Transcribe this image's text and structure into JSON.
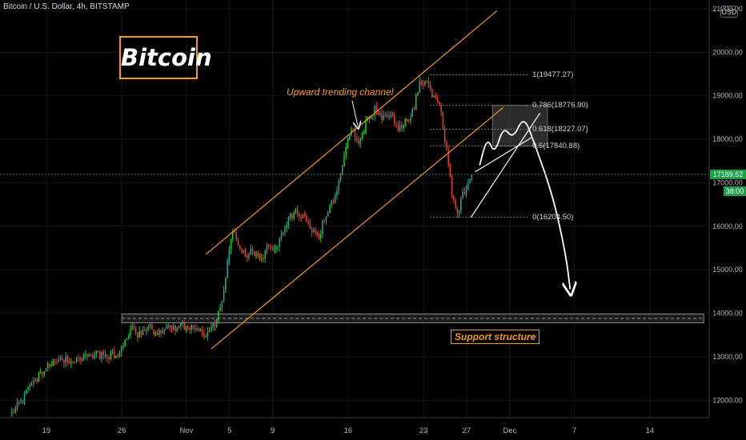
{
  "header": {
    "title": "Bitcoin / U.S. Dollar, 4h, BITSTAMP",
    "currency": "USD"
  },
  "overlay": {
    "badge": "Bitcoin",
    "channel_label": "Upward trending channel",
    "support_label": "Support structure"
  },
  "price_tags": {
    "last_price": "17189.52",
    "countdown": "38:00",
    "hidden_tick": "17"
  },
  "colors": {
    "up": "#26a69a",
    "up_bright": "#22d11e",
    "down": "#ef3a3a",
    "accent": "#f39a16",
    "last_price_line": "#1f9e49"
  },
  "chart_data": {
    "type": "candlestick",
    "title": "Bitcoin / U.S. Dollar, 4h, BITSTAMP",
    "y_ticks": [
      12000,
      13000,
      14000,
      15000,
      16000,
      17000,
      18000,
      19000,
      20000,
      21000
    ],
    "y_tick_labels": [
      "12000.00",
      "13000.00",
      "14000.00",
      "15000.00",
      "16000.00",
      "17000.00",
      "18000.00",
      "19000.00",
      "20000.00",
      "21000.00"
    ],
    "x_tick_labels": [
      "19",
      "26",
      "Nov",
      "5",
      "9",
      "16",
      "23",
      "27",
      "Dec",
      "7",
      "14"
    ],
    "x_tick_days": [
      -13,
      -6,
      0,
      4,
      8,
      15,
      22,
      26,
      30,
      36,
      43
    ],
    "ylim": [
      11600,
      21200
    ],
    "xlim": [
      -17.3,
      48.5
    ],
    "series_anchors": {
      "day": [
        -16.2,
        -14.5,
        -13.0,
        -11.5,
        -10.0,
        -8.5,
        -7.0,
        -6.0,
        -5.0,
        -4.2,
        -3.5,
        -2.5,
        -1.5,
        0.0,
        1.0,
        2.0,
        2.8,
        3.5,
        4.0,
        4.5,
        5.0,
        5.6,
        6.3,
        7.0,
        7.8,
        8.5,
        9.3,
        10.2,
        11.0,
        11.8,
        12.5,
        13.2,
        14.0,
        14.8,
        15.4,
        16.2,
        17.0,
        17.7,
        18.4,
        19.1,
        19.8,
        20.5,
        21.2,
        21.8,
        22.3,
        22.8,
        23.3,
        23.8,
        24.4,
        24.9,
        25.3,
        25.7,
        26.2,
        26.6
      ],
      "price": [
        11650,
        12250,
        12700,
        12950,
        12900,
        13050,
        13000,
        13100,
        13650,
        13500,
        13700,
        13550,
        13650,
        13700,
        13600,
        13450,
        13750,
        14300,
        15300,
        15950,
        15500,
        15300,
        15450,
        15150,
        15600,
        15500,
        16000,
        16350,
        16200,
        15900,
        15800,
        16350,
        16700,
        17600,
        18250,
        17900,
        18500,
        18700,
        18450,
        18600,
        18200,
        18400,
        18650,
        19350,
        19300,
        19100,
        18900,
        18600,
        17550,
        16550,
        16300,
        16650,
        16950,
        17190
      ]
    },
    "fibonacci": {
      "levels": [
        {
          "ratio": 1,
          "price": 19477.27,
          "label": "1(19477.27)"
        },
        {
          "ratio": 0.786,
          "price": 18776.9,
          "label": "0.786(18776.90)"
        },
        {
          "ratio": 0.618,
          "price": 18227.07,
          "label": "0.618(18227.07)"
        },
        {
          "ratio": 0.5,
          "price": 17840.88,
          "label": "0.5(17840.88)"
        },
        {
          "ratio": 0,
          "price": 16204.5,
          "label": "0(16204.50)"
        }
      ],
      "day_range": [
        22.6,
        31.8
      ]
    },
    "channel": {
      "lower": [
        [
          2.3,
          13180
        ],
        [
          29.4,
          18730
        ]
      ],
      "upper": [
        [
          1.8,
          15350
        ],
        [
          28.8,
          20950
        ]
      ]
    },
    "support_zone": {
      "low": 13780,
      "high": 13980,
      "day_range": [
        -6.0,
        48.0
      ]
    },
    "resistance_box": {
      "low": 17840.88,
      "high": 18776.9,
      "day_range": [
        28.4,
        33.5
      ]
    },
    "last_price": 17189.52,
    "projection": [
      [
        27.2,
        17400
      ],
      [
        27.9,
        18050
      ],
      [
        28.6,
        17650
      ],
      [
        29.4,
        18300
      ],
      [
        30.3,
        18000
      ],
      [
        31.3,
        18550
      ],
      [
        32.3,
        17900
      ],
      [
        34.0,
        16700
      ],
      [
        35.2,
        15350
      ],
      [
        35.6,
        14550
      ]
    ],
    "wedge": [
      [
        [
          26.4,
          16204.5
        ],
        [
          32.8,
          18600
        ]
      ],
      [
        [
          26.8,
          17250
        ],
        [
          32.1,
          18050
        ]
      ]
    ]
  }
}
